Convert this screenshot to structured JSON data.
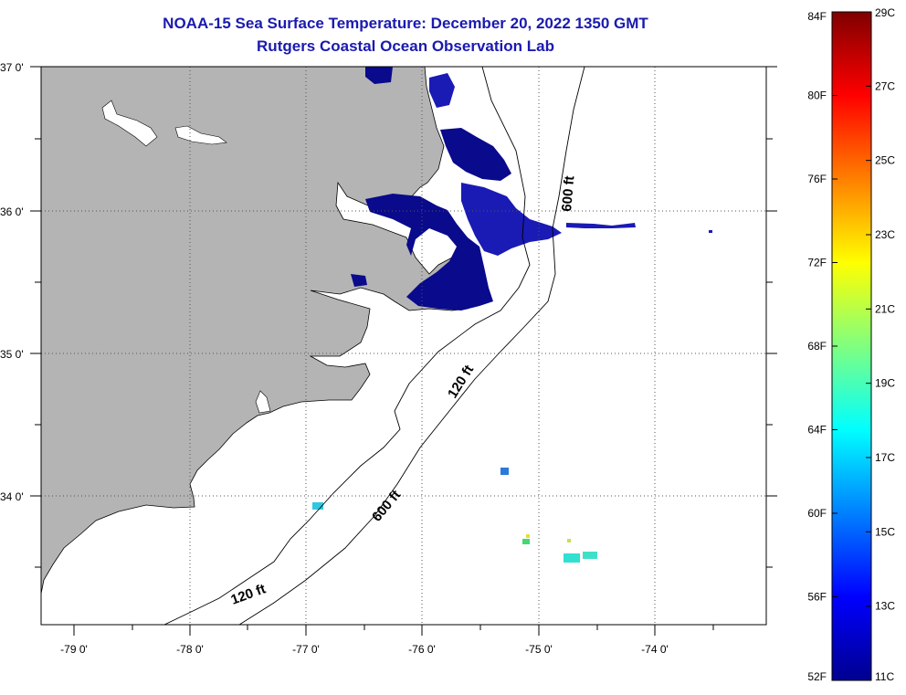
{
  "header": {
    "title": "NOAA-15 Sea Surface Temperature:  December 20, 2022 1350 GMT",
    "subtitle": "Rutgers Coastal Ocean Observation Lab"
  },
  "map": {
    "latitude_labels": [
      "37 0'",
      "36 0'",
      "35 0'",
      "34 0'"
    ],
    "longitude_labels": [
      "-79 0'",
      "-78 0'",
      "-77 0'",
      "-76 0'",
      "-75 0'",
      "-74 0'"
    ],
    "contour_labels": {
      "shelf_120_north": "120 ft",
      "shelf_120_south": "120 ft",
      "slope_600_north": "600 ft",
      "slope_600_south": "600 ft"
    },
    "colors": {
      "land": "#b4b4b4",
      "ocean_no_data": "#ffffff",
      "cold_water": "#0a0a8c"
    }
  },
  "colorbar": {
    "fahrenheit_labels": [
      "84F",
      "80F",
      "76F",
      "72F",
      "68F",
      "64F",
      "60F",
      "56F",
      "52F"
    ],
    "celsius_labels": [
      "29C",
      "27C",
      "25C",
      "23C",
      "21C",
      "19C",
      "17C",
      "15C",
      "13C",
      "11C"
    ],
    "range_c": [
      11,
      29
    ],
    "range_f": [
      52,
      84
    ]
  }
}
